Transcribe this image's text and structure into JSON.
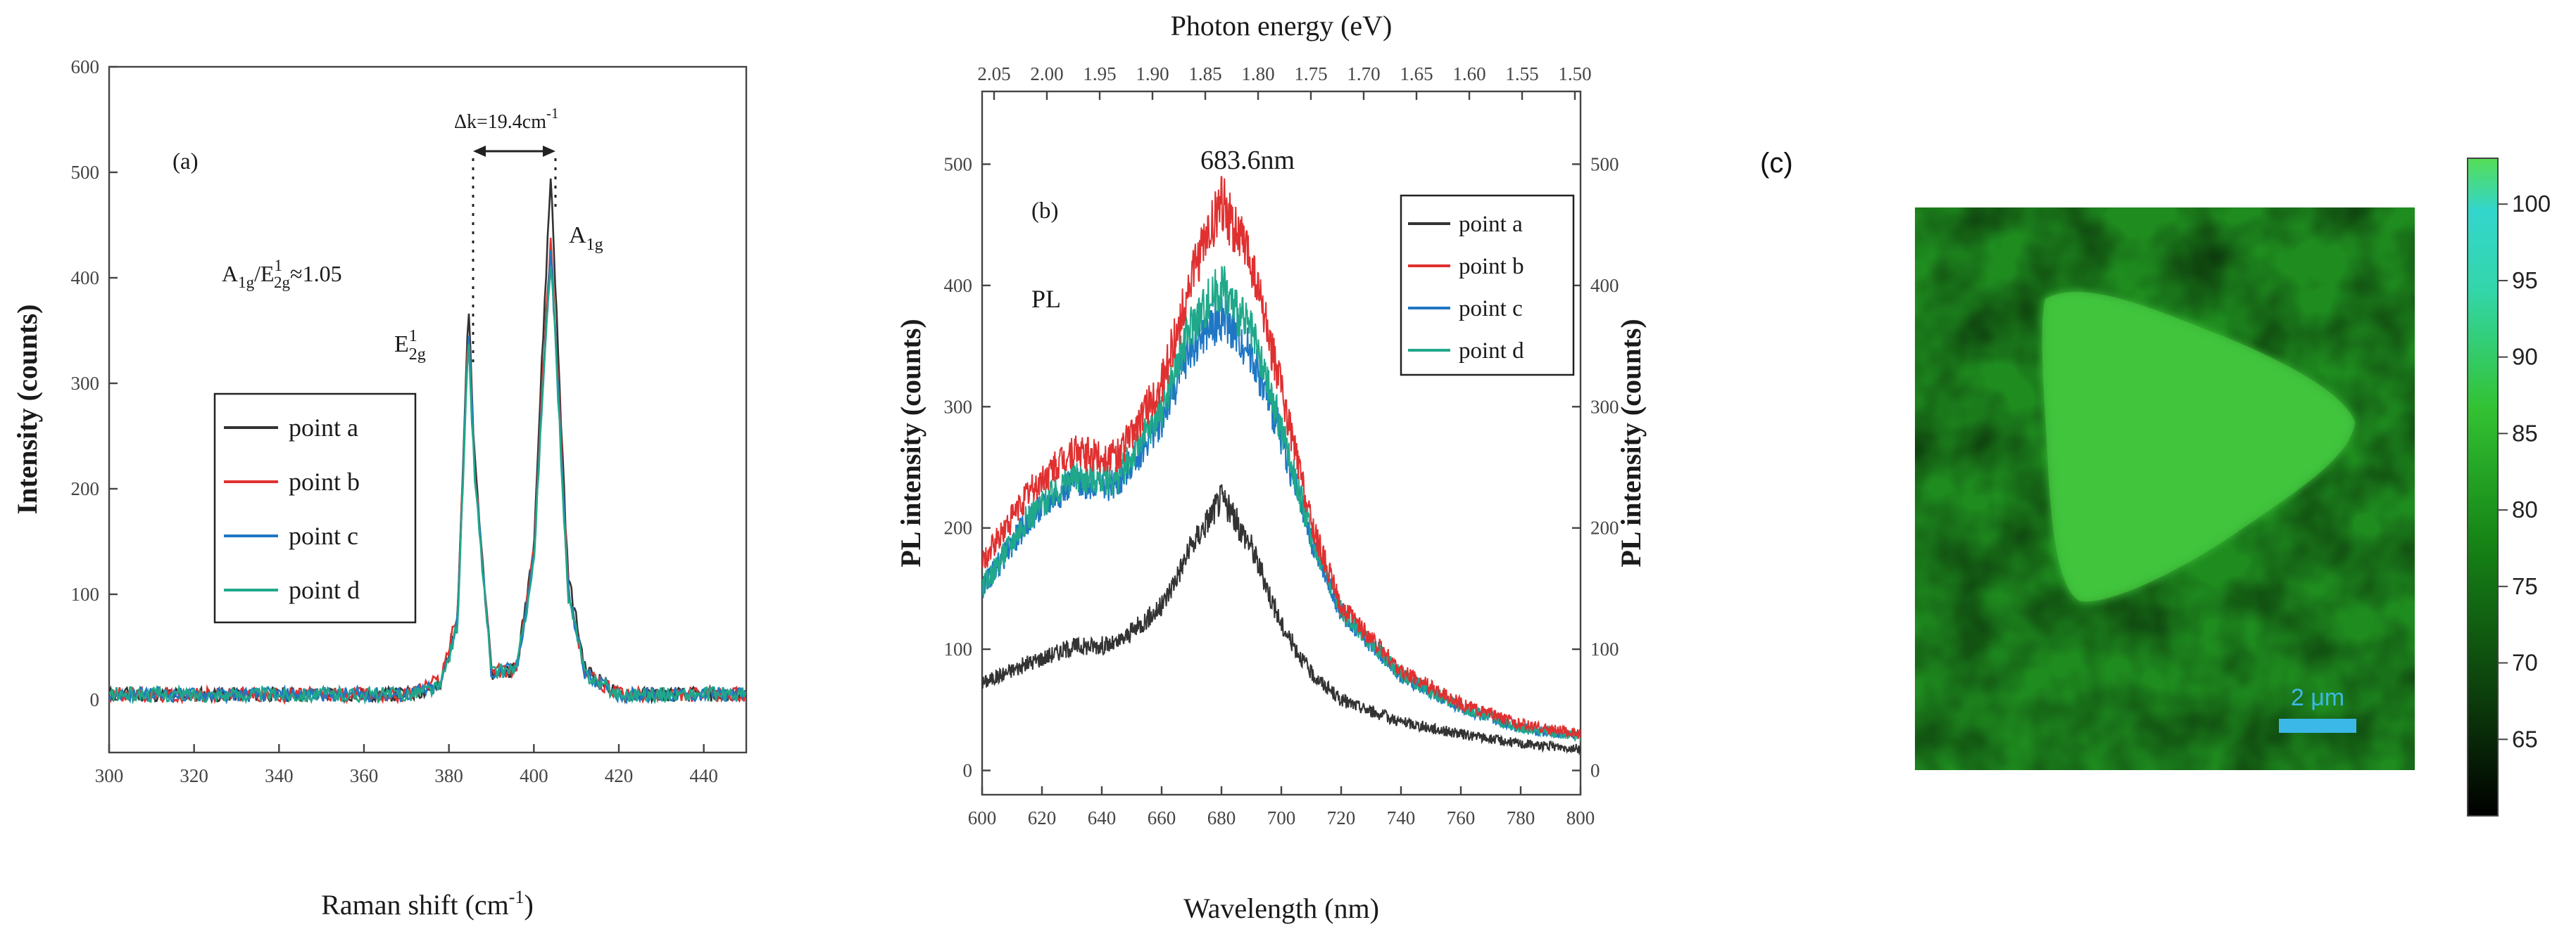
{
  "chart_data": [
    {
      "type": "line",
      "panel_label": "(a)",
      "xlabel_main": "Raman shift (cm",
      "xlabel_sup": "-1",
      "xlabel_end": ")",
      "ylabel": "Intensity (counts)",
      "xlim": [
        300,
        450
      ],
      "ylim": [
        -50,
        600
      ],
      "xticks": [
        300,
        320,
        340,
        360,
        380,
        400,
        420,
        440
      ],
      "yticks": [
        0,
        100,
        200,
        300,
        400,
        500,
        600
      ],
      "peaks": [
        {
          "name": "E2g1",
          "center": 384.6
        },
        {
          "name": "A1g",
          "center": 404.0
        }
      ],
      "series": [
        {
          "name": "point a",
          "color": "#333333",
          "x": [
            300,
            370,
            378,
            382,
            384,
            384.6,
            386,
            390,
            396,
            400,
            402,
            404,
            406,
            408,
            412,
            420,
            450
          ],
          "y": [
            5,
            5,
            12,
            80,
            300,
            375,
            230,
            25,
            30,
            150,
            330,
            500,
            300,
            120,
            30,
            5,
            5
          ]
        },
        {
          "name": "point b",
          "color": "#e03030",
          "x": [
            300,
            370,
            378,
            382,
            384,
            384.6,
            386,
            390,
            396,
            400,
            402,
            404,
            406,
            408,
            412,
            420,
            450
          ],
          "y": [
            5,
            5,
            20,
            80,
            290,
            360,
            225,
            25,
            30,
            140,
            300,
            440,
            280,
            110,
            25,
            5,
            5
          ]
        },
        {
          "name": "point c",
          "color": "#1f77c4",
          "x": [
            300,
            370,
            378,
            382,
            384,
            384.6,
            386,
            390,
            396,
            400,
            402,
            404,
            406,
            408,
            412,
            420,
            450
          ],
          "y": [
            5,
            5,
            12,
            75,
            285,
            355,
            220,
            25,
            30,
            135,
            290,
            425,
            270,
            105,
            25,
            5,
            5
          ]
        },
        {
          "name": "point d",
          "color": "#20a88a",
          "x": [
            300,
            370,
            378,
            382,
            384,
            384.6,
            386,
            390,
            396,
            400,
            402,
            404,
            406,
            408,
            412,
            420,
            450
          ],
          "y": [
            5,
            5,
            12,
            70,
            280,
            340,
            215,
            25,
            30,
            130,
            285,
            420,
            265,
            100,
            25,
            5,
            5
          ]
        }
      ],
      "annotations": {
        "delta_k": "Δk=19.4cm",
        "delta_k_sup": "-1",
        "ratio_a1g": "A",
        "ratio_a1g_sub": "1g",
        "ratio_e_sub": "2g",
        "ratio_e_sup": "1",
        "ratio_value": "≈1.05",
        "e2g_label": "E",
        "e2g_sub": "2g",
        "e2g_sup": "1",
        "a1g_label": "A",
        "a1g_sub": "1g"
      },
      "legend": "center-left"
    },
    {
      "type": "line",
      "panel_label": "(b)",
      "title": "Photon energy (eV)",
      "xlabel": "Wavelength (nm)",
      "ylabel": "PL intensity (counts)",
      "ylabel_right": "PL intensity (counts)",
      "xlim": [
        600,
        800
      ],
      "ylim": [
        -20,
        560
      ],
      "xticks": [
        600,
        620,
        640,
        660,
        680,
        700,
        720,
        740,
        760,
        780,
        800
      ],
      "yticks": [
        0,
        100,
        200,
        300,
        400,
        500
      ],
      "top_ticks": [
        "2.05",
        "2.00",
        "1.95",
        "1.90",
        "1.85",
        "1.80",
        "1.75",
        "1.70",
        "1.65",
        "1.60",
        "1.55",
        "1.50"
      ],
      "annotations": {
        "peak": "683.6nm",
        "pl": "PL"
      },
      "series": [
        {
          "name": "point a",
          "color": "#333333",
          "x": [
            600,
            615,
            630,
            645,
            660,
            670,
            680,
            690,
            700,
            710,
            720,
            740,
            760,
            780,
            800
          ],
          "y": [
            72,
            88,
            102,
            104,
            135,
            185,
            225,
            185,
            120,
            80,
            58,
            40,
            30,
            22,
            18
          ]
        },
        {
          "name": "point b",
          "color": "#e03030",
          "x": [
            600,
            615,
            630,
            645,
            660,
            670,
            680,
            690,
            700,
            710,
            720,
            740,
            760,
            780,
            800
          ],
          "y": [
            170,
            228,
            262,
            258,
            318,
            405,
            470,
            418,
            315,
            205,
            135,
            82,
            55,
            38,
            30
          ]
        },
        {
          "name": "point c",
          "color": "#1f77c4",
          "x": [
            600,
            615,
            630,
            645,
            660,
            670,
            680,
            690,
            700,
            710,
            720,
            740,
            760,
            780,
            800
          ],
          "y": [
            150,
            205,
            238,
            235,
            290,
            350,
            375,
            345,
            275,
            190,
            130,
            78,
            52,
            35,
            28
          ]
        },
        {
          "name": "point d",
          "color": "#20a88a",
          "x": [
            600,
            615,
            630,
            645,
            660,
            670,
            680,
            690,
            700,
            710,
            720,
            740,
            760,
            780,
            800
          ],
          "y": [
            150,
            208,
            242,
            240,
            298,
            368,
            400,
            360,
            282,
            194,
            132,
            79,
            52,
            35,
            28
          ]
        }
      ],
      "legend": "top-right"
    },
    {
      "type": "heatmap",
      "panel_label": "(c)",
      "scale_bar_label": "2 μm",
      "colorbar_ticks": [
        100,
        95,
        90,
        85,
        80,
        75,
        70,
        65
      ],
      "colorbar_range": [
        60,
        103
      ],
      "colors": {
        "background": "#1f8c1f",
        "triangle": "#3ec03a",
        "scale_bar": "#3cb8e8"
      }
    }
  ]
}
